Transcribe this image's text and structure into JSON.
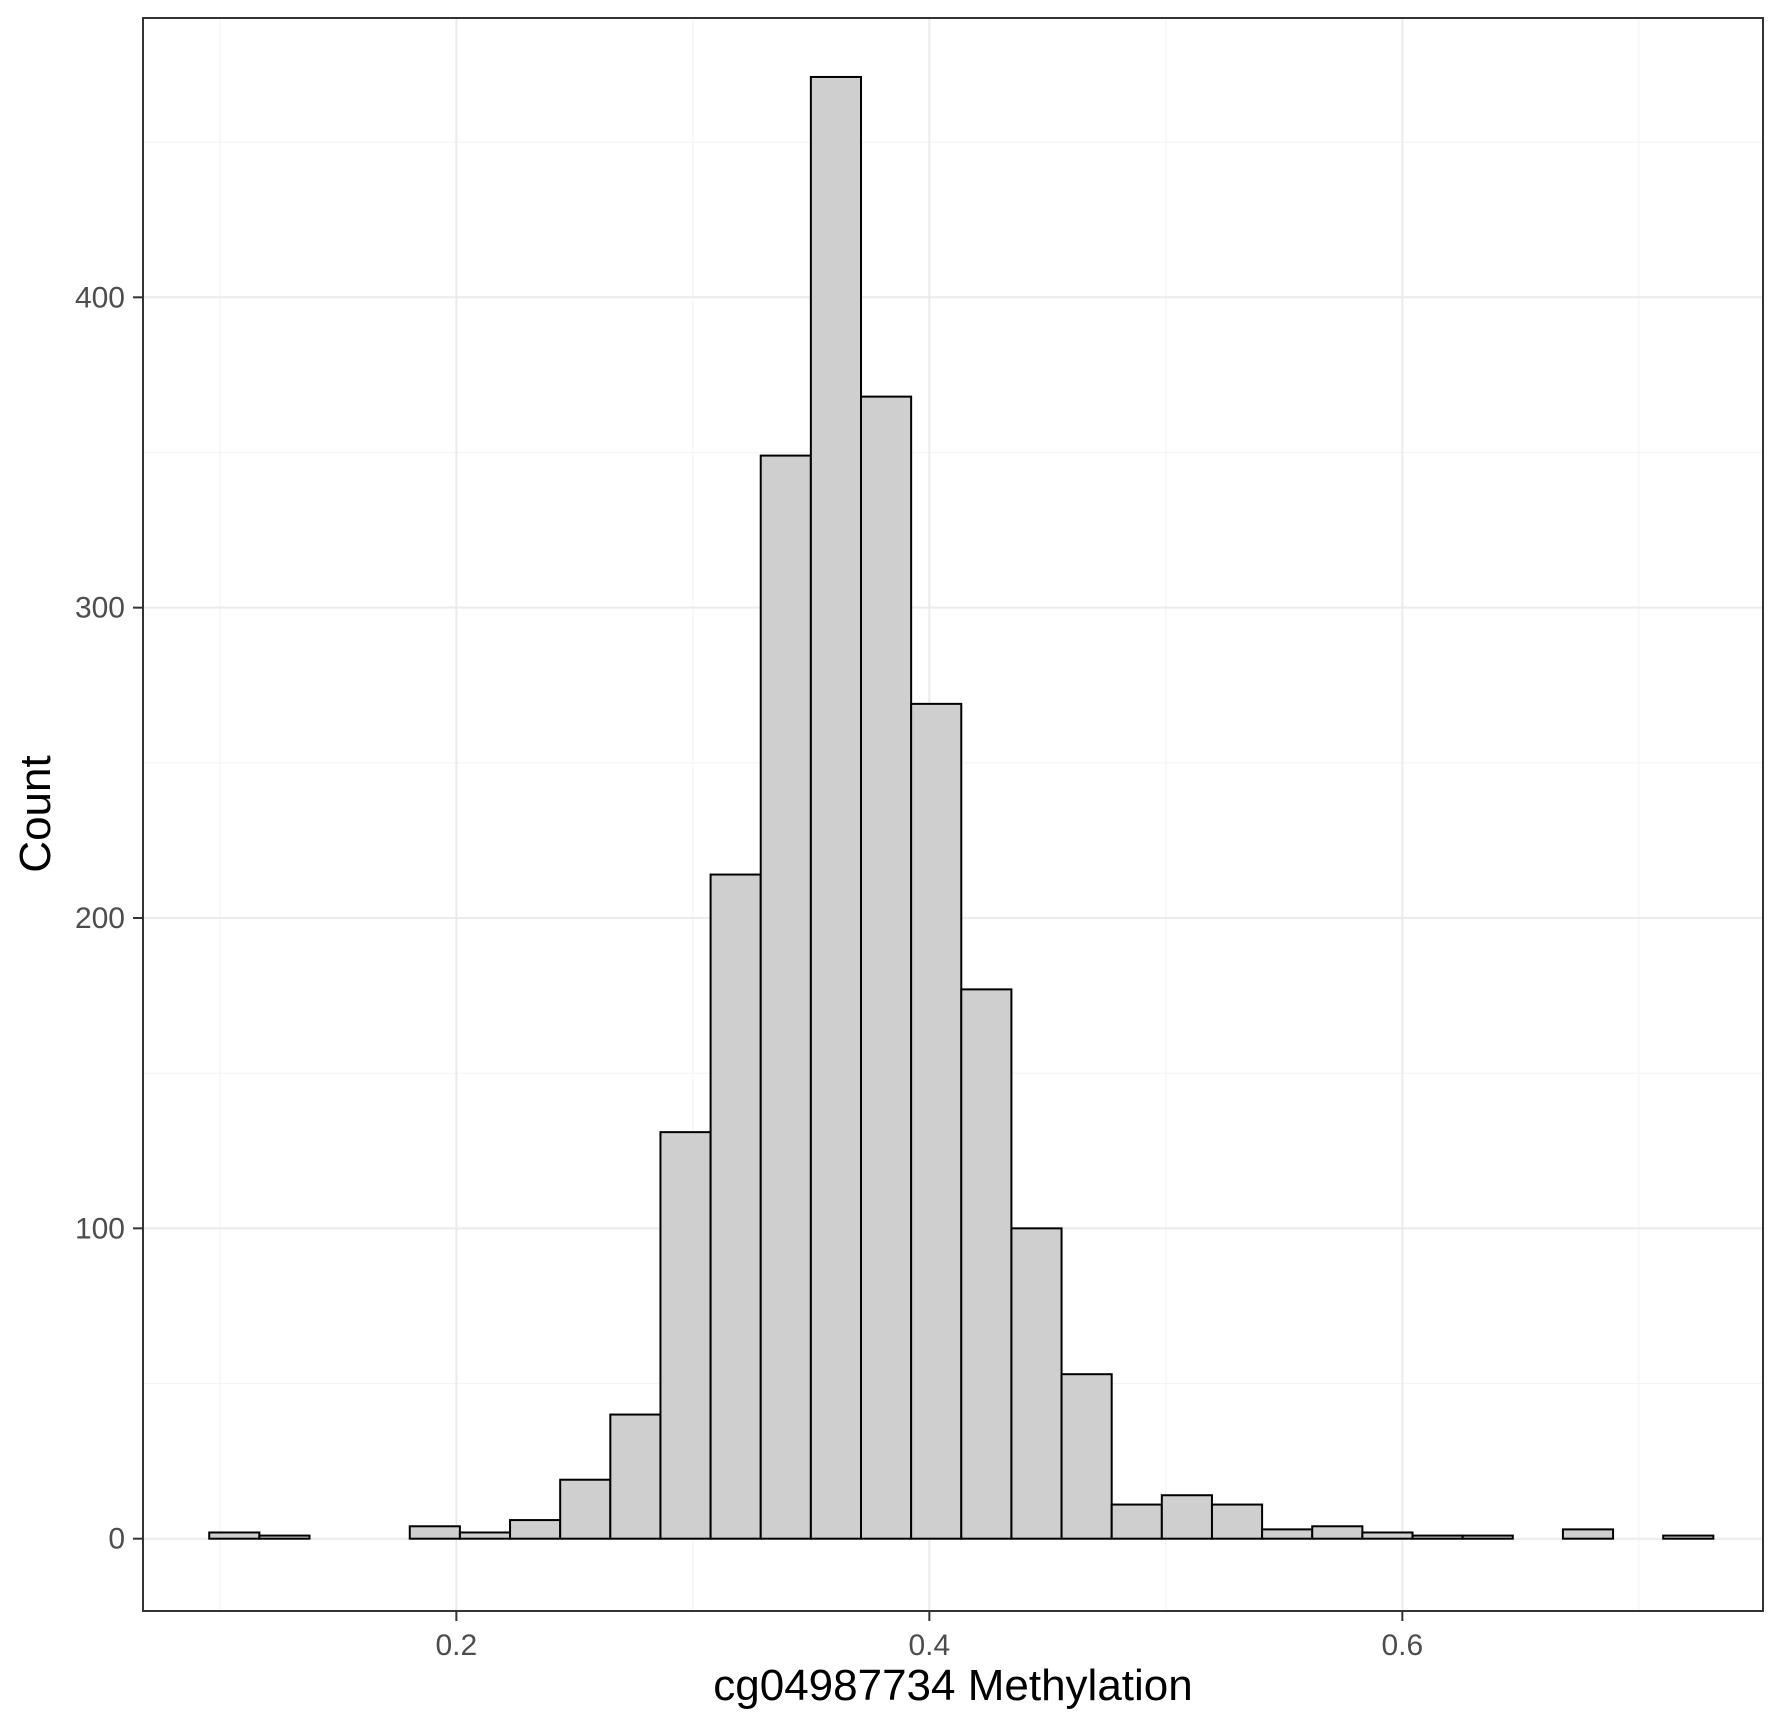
{
  "chart_data": {
    "type": "bar",
    "subtype": "histogram",
    "xlabel": "cg04987734 Methylation",
    "ylabel": "Count",
    "xlim": [
      0.0675,
      0.7525
    ],
    "ylim": [
      -23.3,
      490
    ],
    "xticks": [
      0.2,
      0.4,
      0.6
    ],
    "xtick_labels": [
      "0.2",
      "0.4",
      "0.6"
    ],
    "xminor": [
      0.1,
      0.3,
      0.5,
      0.7
    ],
    "yticks": [
      0,
      100,
      200,
      300,
      400
    ],
    "ytick_labels": [
      "0",
      "100",
      "200",
      "300",
      "400"
    ],
    "yminor": [
      50,
      150,
      250,
      350,
      450
    ],
    "grid": true,
    "bin_width": 0.0212,
    "bin_start": 0.0955,
    "values": [
      2,
      1,
      0,
      0,
      4,
      2,
      6,
      19,
      40,
      131,
      214,
      349,
      471,
      368,
      269,
      177,
      100,
      53,
      11,
      14,
      11,
      3,
      4,
      2,
      1,
      1,
      0,
      3,
      0,
      1
    ],
    "colors": {
      "bar_fill": "#cfcfcf",
      "bar_stroke": "#000000",
      "grid": "#ebebeb"
    }
  }
}
